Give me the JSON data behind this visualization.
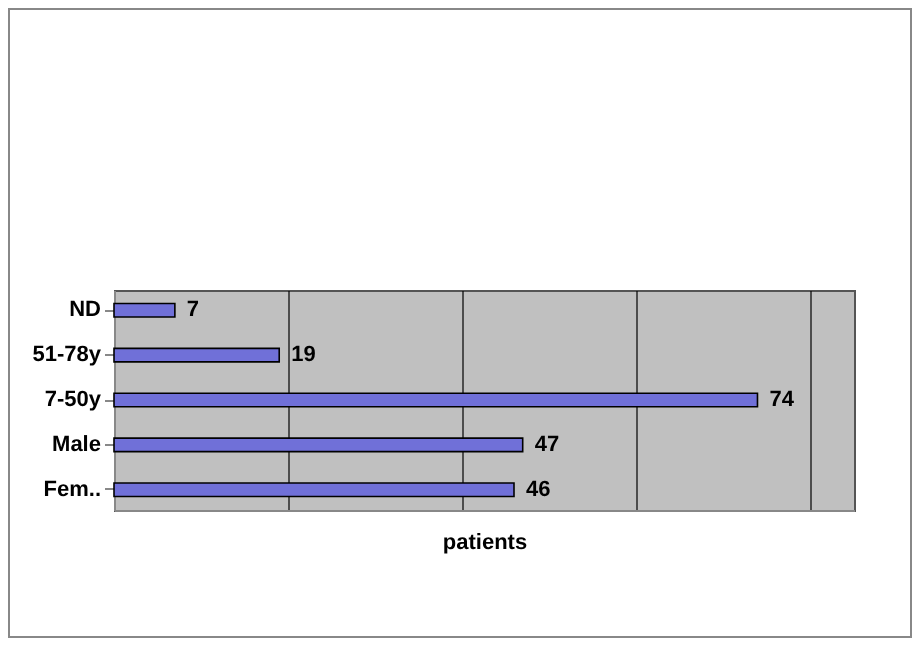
{
  "chart_data": {
    "type": "bar",
    "orientation": "horizontal",
    "xlabel": "patients",
    "categories": [
      "ND",
      "51-78y",
      "7-50y",
      "Male",
      "Fem.."
    ],
    "values": [
      7,
      19,
      74,
      47,
      46
    ],
    "color": "#7070d8",
    "data_labels": true,
    "grid": "x"
  }
}
